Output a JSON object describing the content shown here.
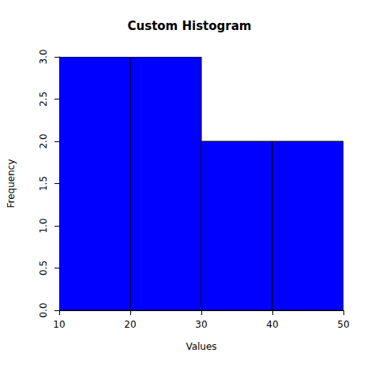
{
  "chart_data": {
    "type": "histogram",
    "title": "Custom Histogram",
    "x_label": "Values",
    "y_label": "Frequency",
    "bins": [
      10,
      20,
      30,
      40,
      50
    ],
    "counts": [
      3,
      3,
      2,
      2
    ],
    "color": "#0000ff",
    "xlim": [
      10,
      50
    ],
    "xticks": [
      10,
      20,
      30,
      40,
      50
    ],
    "ylim": [
      0,
      3
    ],
    "yticks": [
      {
        "value": 0,
        "label": "0.0"
      },
      0.5,
      {
        "value": 1,
        "label": "1.0"
      },
      1.5,
      {
        "value": 2,
        "label": "2.0"
      },
      2.5,
      {
        "value": 3,
        "label": "3.0"
      }
    ],
    "grid": false
  }
}
